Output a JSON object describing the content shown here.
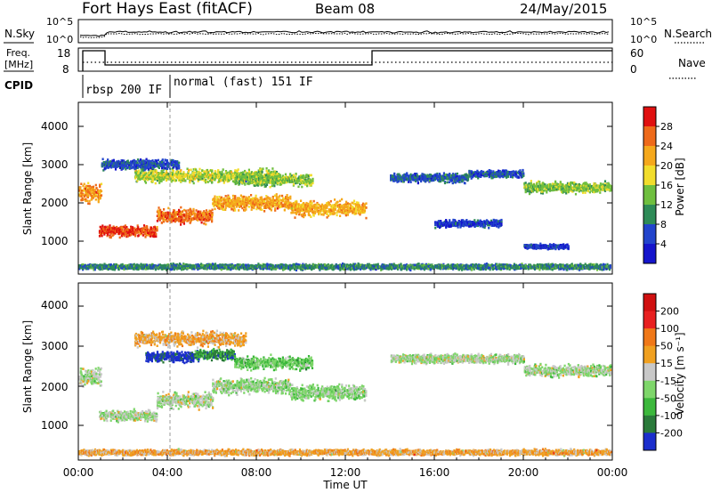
{
  "header": {
    "station": "Fort Hays East (fitACF)",
    "beam": "Beam 08",
    "date": "24/May/2015"
  },
  "top_panels": {
    "nsky_label": "N.Sky",
    "nsearch_label": "N.Search",
    "freq_label_line1": "Freq.",
    "freq_label_line2": "[MHz]",
    "nave_label": "Nave",
    "cpid_label": "CPID",
    "noise_ticks": [
      "10^5",
      "10^0"
    ],
    "freq_ticks": [
      "18",
      "8"
    ],
    "nave_ticks": [
      "60",
      "0"
    ],
    "cpid_segments": [
      {
        "label": "rbsp 200 IF",
        "start_h": 0,
        "end_h": 4
      },
      {
        "label": "normal (fast) 151 IF",
        "start_h": 4,
        "end_h": 24
      }
    ]
  },
  "chart_data": [
    {
      "type": "heatmap",
      "name": "Power",
      "ylabel": "Slant Range [km]",
      "ylim": [
        0,
        4500
      ],
      "yticks": [
        "1000",
        "2000",
        "3000",
        "4000"
      ],
      "xlim": [
        0,
        24
      ],
      "colorbar": {
        "label": "Power [dB]",
        "ticks": [
          "4",
          "8",
          "12",
          "16",
          "20",
          "24",
          "28"
        ],
        "colors": [
          "#1515cc",
          "#2244cc",
          "#2e8b57",
          "#6fbf3f",
          "#f2dd2c",
          "#f5a81c",
          "#ee6a1a",
          "#e01010"
        ]
      },
      "bands": [
        {
          "start_h": 0.0,
          "end_h": 1.0,
          "center_km": 2150,
          "width_km": 520,
          "level": 0.72
        },
        {
          "start_h": 0.9,
          "end_h": 3.5,
          "center_km": 1150,
          "width_km": 320,
          "level": 0.88
        },
        {
          "start_h": 3.5,
          "end_h": 6.0,
          "center_km": 1550,
          "width_km": 420,
          "level": 0.8
        },
        {
          "start_h": 6.0,
          "end_h": 9.5,
          "center_km": 1900,
          "width_km": 420,
          "level": 0.7
        },
        {
          "start_h": 9.5,
          "end_h": 12.9,
          "center_km": 1750,
          "width_km": 460,
          "level": 0.68
        },
        {
          "start_h": 2.5,
          "end_h": 9.0,
          "center_km": 2600,
          "width_km": 380,
          "level": 0.5
        },
        {
          "start_h": 7.0,
          "end_h": 10.5,
          "center_km": 2500,
          "width_km": 360,
          "level": 0.45
        },
        {
          "start_h": 1.0,
          "end_h": 4.5,
          "center_km": 2900,
          "width_km": 300,
          "level": 0.2
        },
        {
          "start_h": 14.0,
          "end_h": 17.5,
          "center_km": 2550,
          "width_km": 260,
          "level": 0.22
        },
        {
          "start_h": 17.5,
          "end_h": 20.0,
          "center_km": 2650,
          "width_km": 220,
          "level": 0.2
        },
        {
          "start_h": 20.0,
          "end_h": 24.0,
          "center_km": 2300,
          "width_km": 320,
          "level": 0.45
        },
        {
          "start_h": 16.0,
          "end_h": 19.0,
          "center_km": 1350,
          "width_km": 220,
          "level": 0.15
        },
        {
          "start_h": 20.0,
          "end_h": 22.0,
          "center_km": 750,
          "width_km": 140,
          "level": 0.15
        },
        {
          "start_h": 0.0,
          "end_h": 24.0,
          "center_km": 220,
          "width_km": 160,
          "level": 0.3
        }
      ]
    },
    {
      "type": "heatmap",
      "name": "Velocity",
      "ylabel": "Slant Range [km]",
      "xlabel": "Time UT",
      "ylim": [
        0,
        4500
      ],
      "yticks": [
        "1000",
        "2000",
        "3000",
        "4000"
      ],
      "xlim": [
        0,
        24
      ],
      "xticks": [
        "00:00",
        "04:00",
        "08:00",
        "12:00",
        "16:00",
        "20:00",
        "00:00"
      ],
      "colorbar": {
        "label": "Velocity [m s⁻¹]",
        "ticks": [
          "200",
          "100",
          "50",
          "15",
          "-15",
          "-50",
          "-100",
          "-200"
        ],
        "colors": [
          "#1b2ecc",
          "#2a7a3a",
          "#3cb83c",
          "#7ed66a",
          "#c8c8c8",
          "#f0a020",
          "#f07818",
          "#e82020",
          "#d01010"
        ]
      },
      "bands": [
        {
          "start_h": 0.0,
          "end_h": 1.0,
          "center_km": 2150,
          "width_km": 520,
          "level": 0.45
        },
        {
          "start_h": 0.9,
          "end_h": 3.5,
          "center_km": 1150,
          "width_km": 320,
          "level": 0.45
        },
        {
          "start_h": 3.5,
          "end_h": 6.0,
          "center_km": 1550,
          "width_km": 420,
          "level": 0.45
        },
        {
          "start_h": 6.0,
          "end_h": 9.5,
          "center_km": 1900,
          "width_km": 420,
          "level": 0.42
        },
        {
          "start_h": 9.5,
          "end_h": 12.9,
          "center_km": 1750,
          "width_km": 460,
          "level": 0.4
        },
        {
          "start_h": 3.0,
          "end_h": 5.2,
          "center_km": 2650,
          "width_km": 300,
          "level": 0.05
        },
        {
          "start_h": 5.2,
          "end_h": 7.0,
          "center_km": 2700,
          "width_km": 300,
          "level": 0.2
        },
        {
          "start_h": 7.0,
          "end_h": 10.5,
          "center_km": 2500,
          "width_km": 360,
          "level": 0.35
        },
        {
          "start_h": 2.5,
          "end_h": 7.5,
          "center_km": 3100,
          "width_km": 400,
          "level": 0.6
        },
        {
          "start_h": 14.0,
          "end_h": 20.0,
          "center_km": 2600,
          "width_km": 260,
          "level": 0.45
        },
        {
          "start_h": 20.0,
          "end_h": 24.0,
          "center_km": 2300,
          "width_km": 320,
          "level": 0.45
        },
        {
          "start_h": 0.0,
          "end_h": 24.0,
          "center_km": 220,
          "width_km": 160,
          "level": 0.6
        }
      ]
    }
  ]
}
